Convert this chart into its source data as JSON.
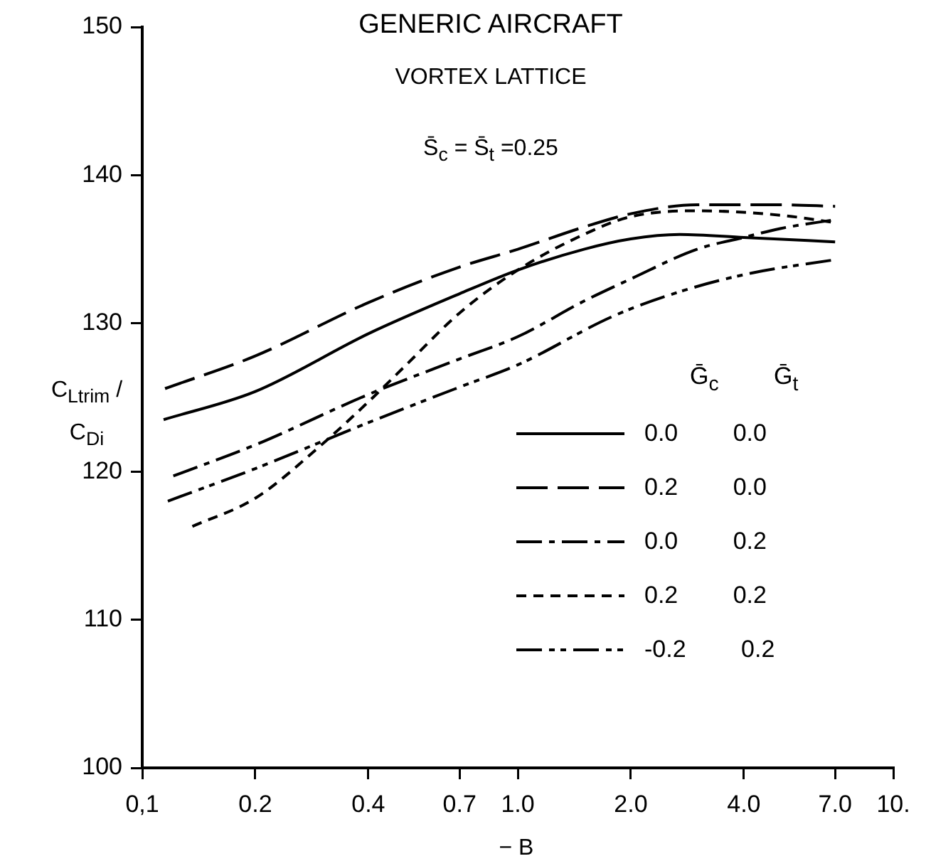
{
  "chart_data": {
    "type": "line",
    "title": "GENERIC AIRCRAFT",
    "subtitle": "VORTEX LATTICE",
    "annotations": [
      "S̄$_{c}$ = S̄$_{t}$ =0.25"
    ],
    "xlabel": "− B",
    "ylabel": "C$_{Ltrim}$ / C$_{Di}$",
    "legend_title": "Ḡ$_{c}$ Ḡ$_{t}$",
    "legend": "right",
    "log": "x",
    "grid": false,
    "marker": "none",
    "xlim": [
      0.1,
      10
    ],
    "xticks": [
      {
        "value": 0.1,
        "label": "0,1"
      },
      0.2,
      0.4,
      0.7,
      {
        "value": 1,
        "label": "1.0"
      },
      {
        "value": 2,
        "label": "2.0"
      },
      {
        "value": 4,
        "label": "4.0"
      },
      {
        "value": 7,
        "label": "7.0"
      },
      {
        "value": 10,
        "label": "10."
      }
    ],
    "ylim": [
      100,
      150
    ],
    "yticks": [
      100,
      110,
      120,
      130,
      140,
      150
    ],
    "series": [
      {
        "name": "0.0 0.0",
        "color": "#000000",
        "line_style": "solid",
        "x": [
          0.114,
          0.2,
          0.4,
          0.7,
          1.0,
          1.5,
          2.0,
          2.7,
          4.0,
          7.0
        ],
        "values": [
          123.5,
          125.4,
          129.3,
          132,
          133.6,
          135,
          135.7,
          136,
          135.8,
          135.5
        ]
      },
      {
        "name": "0.2 0.0",
        "color": "#000000",
        "line_style": "longdash",
        "x": [
          0.115,
          0.2,
          0.4,
          0.7,
          1.0,
          1.5,
          2.0,
          3.0,
          5.0,
          7.0
        ],
        "values": [
          125.6,
          127.8,
          131.4,
          133.8,
          135,
          136.5,
          137.4,
          138,
          138,
          137.9
        ]
      },
      {
        "name": "0.0 0.2",
        "color": "#000000",
        "line_style": "dashdot",
        "x": [
          0.121,
          0.2,
          0.4,
          0.7,
          1.0,
          1.5,
          2.0,
          3.0,
          4.0,
          5.0,
          7.0
        ],
        "values": [
          119.7,
          121.8,
          125.2,
          127.6,
          129.1,
          131.5,
          133,
          135,
          135.8,
          136.4,
          137
        ]
      },
      {
        "name": "0.2 0.2",
        "color": "#000000",
        "line_style": "dashed",
        "x": [
          0.136,
          0.2,
          0.3,
          0.4,
          0.5,
          0.7,
          1.0,
          1.5,
          2.0,
          3.0,
          5.0,
          7.0
        ],
        "values": [
          116.3,
          118.2,
          121.8,
          124.7,
          127.1,
          130.7,
          133.6,
          136,
          137.2,
          137.6,
          137.3,
          136.8
        ]
      },
      {
        "name": "-0.2 0.2",
        "color": "#000000",
        "line_style": "dashdotdot",
        "x": [
          0.117,
          0.2,
          0.4,
          0.7,
          1.0,
          1.8,
          2.75,
          4.2,
          7.0
        ],
        "values": [
          118,
          120.2,
          123.3,
          125.7,
          127.2,
          130.5,
          132.2,
          133.4,
          134.3
        ]
      }
    ]
  }
}
